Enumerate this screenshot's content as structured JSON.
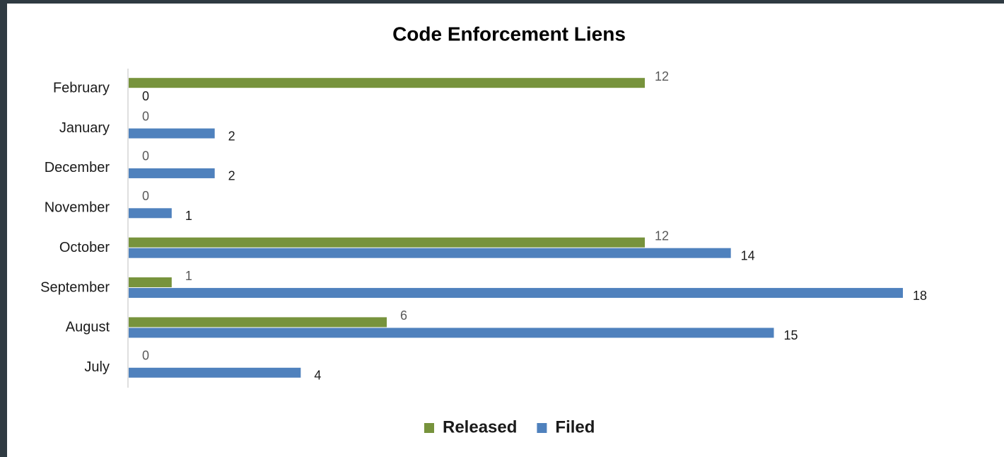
{
  "chart_data": {
    "type": "hbar",
    "title": "Code Enforcement Liens",
    "categories": [
      "July",
      "August",
      "September",
      "October",
      "November",
      "December",
      "January",
      "February"
    ],
    "series": [
      {
        "name": "Released",
        "color": "#77933c",
        "values": [
          0,
          6,
          1,
          12,
          0,
          0,
          0,
          12
        ]
      },
      {
        "name": "Filed",
        "color": "#4f81bd",
        "values": [
          4,
          15,
          18,
          14,
          1,
          2,
          2,
          0
        ]
      }
    ],
    "legend": "bottom"
  }
}
